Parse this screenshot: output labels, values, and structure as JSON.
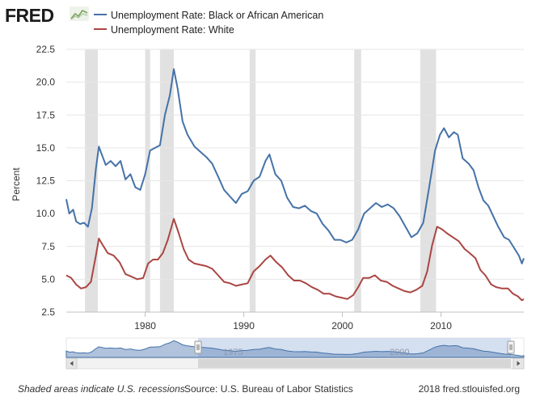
{
  "header": {
    "logo_text": "FRED",
    "logo_icon": "line-chart-icon"
  },
  "legend": [
    {
      "label": "Unemployment Rate: Black or African American",
      "color": "#4572a7"
    },
    {
      "label": "Unemployment Rate: White",
      "color": "#aa4643"
    }
  ],
  "footer": {
    "note": "Shaded areas indicate U.S. recessions",
    "source": "Source: U.S. Bureau of Labor Statistics",
    "copyright": "2018 fred.stlouisfed.org"
  },
  "navigator": {
    "labels": [
      "1975",
      "2000"
    ]
  },
  "chart_data": {
    "type": "line",
    "ylabel": "Percent",
    "xlim": [
      1972.0,
      2018.4
    ],
    "ylim": [
      2.5,
      22.5
    ],
    "y_ticks": [
      "2.5",
      "5.0",
      "7.5",
      "10.0",
      "12.5",
      "15.0",
      "17.5",
      "20.0",
      "22.5"
    ],
    "x_ticks": [
      "1980",
      "1990",
      "2000",
      "2010"
    ],
    "recessions": [
      [
        1973.9,
        1975.2
      ],
      [
        1980.0,
        1980.5
      ],
      [
        1981.5,
        1982.9
      ],
      [
        1990.6,
        1991.2
      ],
      [
        2001.2,
        2001.9
      ],
      [
        2007.9,
        2009.5
      ]
    ],
    "grid": true,
    "series": [
      {
        "name": "Unemployment Rate: Black or African American",
        "color": "#4572a7",
        "points": [
          [
            1972.0,
            11.1
          ],
          [
            1972.3,
            10.0
          ],
          [
            1972.7,
            10.3
          ],
          [
            1973.0,
            9.4
          ],
          [
            1973.4,
            9.2
          ],
          [
            1973.8,
            9.3
          ],
          [
            1974.2,
            9.0
          ],
          [
            1974.6,
            10.4
          ],
          [
            1975.0,
            13.4
          ],
          [
            1975.3,
            15.1
          ],
          [
            1975.6,
            14.5
          ],
          [
            1976.0,
            13.7
          ],
          [
            1976.5,
            14.0
          ],
          [
            1977.0,
            13.6
          ],
          [
            1977.5,
            14.0
          ],
          [
            1978.0,
            12.6
          ],
          [
            1978.5,
            13.0
          ],
          [
            1979.0,
            12.0
          ],
          [
            1979.5,
            11.8
          ],
          [
            1980.0,
            13.0
          ],
          [
            1980.5,
            14.8
          ],
          [
            1981.0,
            15.0
          ],
          [
            1981.5,
            15.2
          ],
          [
            1982.0,
            17.5
          ],
          [
            1982.5,
            19.0
          ],
          [
            1982.9,
            21.0
          ],
          [
            1983.3,
            19.5
          ],
          [
            1983.8,
            17.0
          ],
          [
            1984.3,
            16.0
          ],
          [
            1985.0,
            15.1
          ],
          [
            1985.6,
            14.7
          ],
          [
            1986.2,
            14.3
          ],
          [
            1986.8,
            13.8
          ],
          [
            1987.4,
            12.8
          ],
          [
            1988.0,
            11.8
          ],
          [
            1988.6,
            11.3
          ],
          [
            1989.2,
            10.8
          ],
          [
            1989.8,
            11.5
          ],
          [
            1990.4,
            11.7
          ],
          [
            1991.0,
            12.5
          ],
          [
            1991.6,
            12.8
          ],
          [
            1992.2,
            14.0
          ],
          [
            1992.6,
            14.5
          ],
          [
            1993.2,
            13.0
          ],
          [
            1993.8,
            12.5
          ],
          [
            1994.4,
            11.2
          ],
          [
            1995.0,
            10.5
          ],
          [
            1995.6,
            10.4
          ],
          [
            1996.2,
            10.6
          ],
          [
            1996.8,
            10.2
          ],
          [
            1997.4,
            10.0
          ],
          [
            1998.0,
            9.2
          ],
          [
            1998.6,
            8.7
          ],
          [
            1999.2,
            8.0
          ],
          [
            1999.8,
            8.0
          ],
          [
            2000.4,
            7.8
          ],
          [
            2001.0,
            8.0
          ],
          [
            2001.6,
            8.8
          ],
          [
            2002.2,
            10.0
          ],
          [
            2002.8,
            10.4
          ],
          [
            2003.4,
            10.8
          ],
          [
            2004.0,
            10.5
          ],
          [
            2004.6,
            10.7
          ],
          [
            2005.2,
            10.4
          ],
          [
            2005.8,
            9.8
          ],
          [
            2006.4,
            9.0
          ],
          [
            2007.0,
            8.2
          ],
          [
            2007.6,
            8.5
          ],
          [
            2008.2,
            9.3
          ],
          [
            2008.8,
            12.0
          ],
          [
            2009.4,
            14.8
          ],
          [
            2009.9,
            16.0
          ],
          [
            2010.3,
            16.5
          ],
          [
            2010.8,
            15.8
          ],
          [
            2011.3,
            16.2
          ],
          [
            2011.7,
            16.0
          ],
          [
            2012.2,
            14.2
          ],
          [
            2012.8,
            13.8
          ],
          [
            2013.3,
            13.3
          ],
          [
            2013.8,
            12.0
          ],
          [
            2014.3,
            11.0
          ],
          [
            2014.8,
            10.6
          ],
          [
            2015.3,
            9.8
          ],
          [
            2015.8,
            9.0
          ],
          [
            2016.4,
            8.2
          ],
          [
            2016.9,
            8.0
          ],
          [
            2017.4,
            7.4
          ],
          [
            2017.9,
            6.8
          ],
          [
            2018.2,
            6.2
          ],
          [
            2018.4,
            6.6
          ]
        ]
      },
      {
        "name": "Unemployment Rate: White",
        "color": "#aa4643",
        "points": [
          [
            1972.0,
            5.3
          ],
          [
            1972.5,
            5.1
          ],
          [
            1973.0,
            4.6
          ],
          [
            1973.5,
            4.3
          ],
          [
            1974.0,
            4.4
          ],
          [
            1974.5,
            4.8
          ],
          [
            1975.0,
            6.8
          ],
          [
            1975.3,
            8.1
          ],
          [
            1975.7,
            7.6
          ],
          [
            1976.2,
            7.0
          ],
          [
            1976.8,
            6.8
          ],
          [
            1977.4,
            6.3
          ],
          [
            1978.0,
            5.4
          ],
          [
            1978.6,
            5.2
          ],
          [
            1979.2,
            5.0
          ],
          [
            1979.8,
            5.1
          ],
          [
            1980.3,
            6.2
          ],
          [
            1980.8,
            6.5
          ],
          [
            1981.3,
            6.5
          ],
          [
            1981.8,
            7.0
          ],
          [
            1982.3,
            8.0
          ],
          [
            1982.9,
            9.6
          ],
          [
            1983.4,
            8.5
          ],
          [
            1983.9,
            7.3
          ],
          [
            1984.4,
            6.5
          ],
          [
            1985.0,
            6.2
          ],
          [
            1985.6,
            6.1
          ],
          [
            1986.2,
            6.0
          ],
          [
            1986.8,
            5.8
          ],
          [
            1987.4,
            5.3
          ],
          [
            1988.0,
            4.8
          ],
          [
            1988.6,
            4.7
          ],
          [
            1989.2,
            4.5
          ],
          [
            1989.8,
            4.6
          ],
          [
            1990.4,
            4.7
          ],
          [
            1991.0,
            5.6
          ],
          [
            1991.6,
            6.0
          ],
          [
            1992.2,
            6.5
          ],
          [
            1992.7,
            6.8
          ],
          [
            1993.3,
            6.3
          ],
          [
            1993.9,
            5.9
          ],
          [
            1994.5,
            5.3
          ],
          [
            1995.1,
            4.9
          ],
          [
            1995.7,
            4.9
          ],
          [
            1996.3,
            4.7
          ],
          [
            1996.9,
            4.4
          ],
          [
            1997.5,
            4.2
          ],
          [
            1998.1,
            3.9
          ],
          [
            1998.7,
            3.9
          ],
          [
            1999.3,
            3.7
          ],
          [
            1999.9,
            3.6
          ],
          [
            2000.5,
            3.5
          ],
          [
            2001.1,
            3.8
          ],
          [
            2001.6,
            4.4
          ],
          [
            2002.1,
            5.1
          ],
          [
            2002.7,
            5.1
          ],
          [
            2003.3,
            5.3
          ],
          [
            2003.9,
            4.9
          ],
          [
            2004.5,
            4.8
          ],
          [
            2005.1,
            4.5
          ],
          [
            2005.7,
            4.3
          ],
          [
            2006.3,
            4.1
          ],
          [
            2006.9,
            4.0
          ],
          [
            2007.5,
            4.2
          ],
          [
            2008.1,
            4.5
          ],
          [
            2008.6,
            5.6
          ],
          [
            2009.1,
            7.6
          ],
          [
            2009.6,
            9.0
          ],
          [
            2010.1,
            8.8
          ],
          [
            2010.6,
            8.5
          ],
          [
            2011.2,
            8.2
          ],
          [
            2011.8,
            7.9
          ],
          [
            2012.4,
            7.3
          ],
          [
            2012.9,
            7.0
          ],
          [
            2013.5,
            6.6
          ],
          [
            2014.0,
            5.7
          ],
          [
            2014.5,
            5.3
          ],
          [
            2015.1,
            4.6
          ],
          [
            2015.6,
            4.4
          ],
          [
            2016.2,
            4.3
          ],
          [
            2016.8,
            4.3
          ],
          [
            2017.3,
            3.9
          ],
          [
            2017.8,
            3.7
          ],
          [
            2018.2,
            3.4
          ],
          [
            2018.4,
            3.5
          ]
        ]
      }
    ]
  }
}
